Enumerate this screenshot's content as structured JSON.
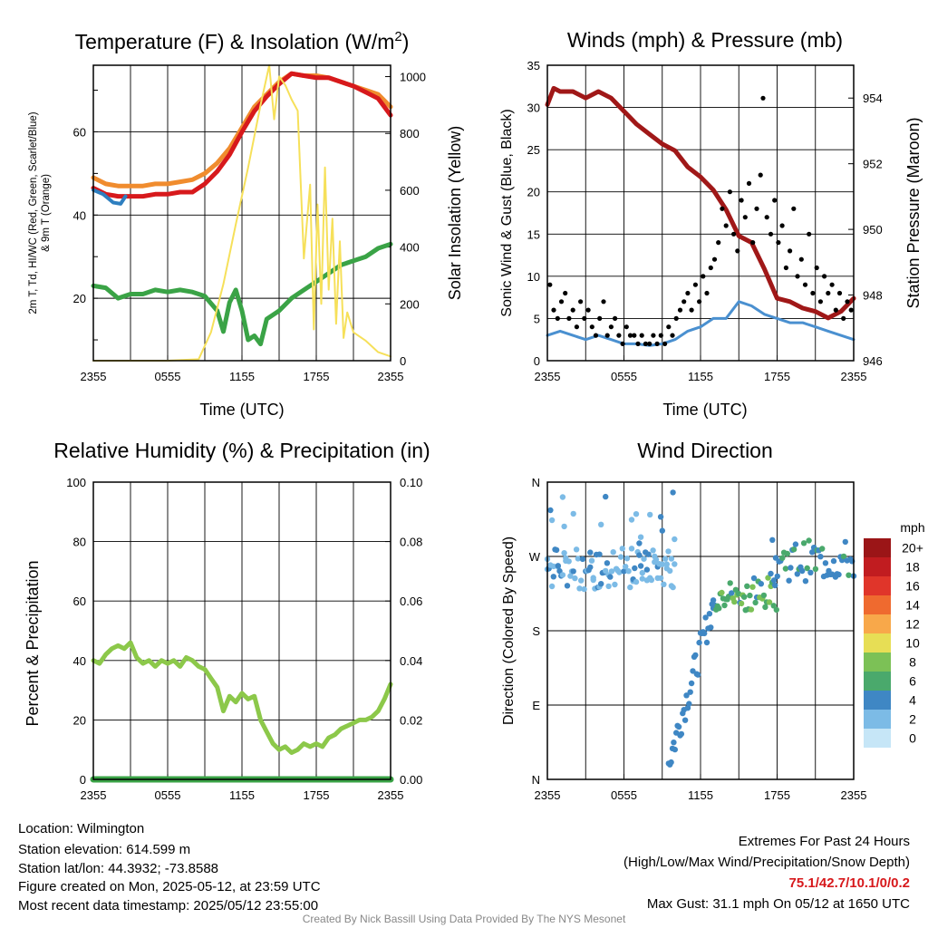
{
  "colors": {
    "temp": "#d7191c",
    "dewpoint": "#3aa346",
    "heat_index": "#2e7fc0",
    "temp9m": "#f08c2e",
    "insolation": "#f6e05a",
    "wind": "#4a90d0",
    "gust": "#000000",
    "pressure": "#a01818",
    "rh": "#8cc84a",
    "precip": "#3aa346"
  },
  "chart_data": [
    {
      "id": "temperature",
      "type": "line",
      "title_text": "Temperature (F) & Insolation (W/m",
      "title_sup": "2",
      "title_close": ")",
      "xlabel": "Time (UTC)",
      "ylabel_line1": "2m T, Td, HI/WC (Red, Green, Scarlet/Blue)",
      "ylabel_line2": "& 9m T (Orange)",
      "ylabel_right": "Solar Insolation (Yellow)",
      "x_ticks": [
        "2355",
        "0555",
        "1155",
        "1755",
        "2355"
      ],
      "y_ticks": [
        "20",
        "40",
        "60"
      ],
      "y_right_ticks": [
        "0",
        "200",
        "400",
        "600",
        "800",
        "1000"
      ],
      "ylim": [
        5,
        76
      ],
      "ylim_right": [
        0,
        1040
      ],
      "xlim": [
        0,
        24
      ],
      "series": [
        {
          "key": "temp9m",
          "axis": "left",
          "x": [
            0,
            1,
            2,
            3,
            4,
            5,
            6,
            7,
            8,
            9,
            10,
            11,
            12,
            13,
            14,
            15,
            16,
            17,
            18,
            19,
            20,
            21,
            22,
            23,
            24
          ],
          "y": [
            49,
            47.5,
            47,
            47,
            47,
            47.5,
            47.5,
            48,
            48.5,
            50,
            52.5,
            56,
            61,
            66,
            69,
            72,
            74,
            73.5,
            73.5,
            73,
            72,
            71,
            70,
            69,
            66
          ]
        },
        {
          "key": "temp",
          "axis": "left",
          "x": [
            0,
            1,
            2,
            3,
            4,
            5,
            6,
            7,
            8,
            9,
            10,
            11,
            12,
            13,
            14,
            15,
            16,
            17,
            18,
            19,
            20,
            21,
            22,
            23,
            24
          ],
          "y": [
            46.5,
            45,
            44.5,
            44.5,
            44.5,
            45,
            45,
            45.5,
            45.5,
            47.5,
            50.5,
            54.5,
            60,
            65,
            68.5,
            71.5,
            74,
            73.5,
            73,
            73,
            72,
            71,
            69.5,
            68,
            64
          ]
        },
        {
          "key": "heat_index",
          "axis": "left",
          "x": [
            0,
            0.4,
            0.8,
            1.2,
            1.6,
            2.2,
            2.6
          ],
          "y": [
            46,
            45.5,
            45,
            44,
            43,
            42.7,
            44.5
          ]
        },
        {
          "key": "dewpoint",
          "axis": "left",
          "x": [
            0,
            1,
            2,
            3,
            4,
            5,
            6,
            7,
            8,
            9,
            10,
            10.5,
            11,
            11.5,
            12,
            12.5,
            13,
            13.5,
            14,
            15,
            16,
            17,
            18,
            19,
            20,
            21,
            22,
            23,
            24
          ],
          "y": [
            23,
            22.5,
            20,
            21,
            21,
            22,
            21.5,
            22,
            21.5,
            20.5,
            17,
            12,
            19,
            22,
            17,
            10,
            11,
            9,
            15,
            17,
            20,
            22,
            24,
            26,
            28,
            29,
            30,
            32,
            33
          ]
        },
        {
          "key": "insolation",
          "axis": "right",
          "x": [
            0,
            6,
            8.5,
            9.5,
            10.5,
            11.5,
            12.5,
            13.5,
            14.2,
            14.6,
            15,
            15.5,
            16,
            16.5,
            17,
            17.5,
            17.8,
            18.1,
            18.4,
            18.7,
            19,
            19.3,
            19.6,
            19.9,
            20.2,
            20.5,
            21,
            22,
            23,
            24
          ],
          "y": [
            0,
            0,
            5,
            100,
            270,
            480,
            680,
            900,
            1040,
            850,
            1000,
            970,
            920,
            880,
            360,
            620,
            110,
            550,
            200,
            680,
            250,
            500,
            130,
            420,
            80,
            170,
            100,
            70,
            30,
            15
          ]
        }
      ]
    },
    {
      "id": "winds",
      "type": "line",
      "title": "Winds (mph) & Pressure (mb)",
      "xlabel": "Time (UTC)",
      "ylabel": "Sonic Wind & Gust (Blue, Black)",
      "ylabel_right": "Station Pressure (Maroon)",
      "x_ticks": [
        "2355",
        "0555",
        "1155",
        "1755",
        "2355"
      ],
      "y_ticks": [
        "0",
        "5",
        "10",
        "15",
        "20",
        "25",
        "30",
        "35"
      ],
      "y_right_ticks": [
        "946",
        "948",
        "950",
        "952",
        "954"
      ],
      "ylim": [
        0,
        35
      ],
      "ylim_right": [
        946,
        955
      ],
      "xlim": [
        0,
        24
      ],
      "series": [
        {
          "key": "wind",
          "x": [
            0,
            1,
            2,
            3,
            4,
            5,
            6,
            7,
            8,
            9,
            10,
            11,
            12,
            13,
            14,
            15,
            16,
            17,
            18,
            19,
            20,
            21,
            22,
            23,
            24
          ],
          "y": [
            3,
            3.5,
            3,
            2.5,
            3,
            2.5,
            2,
            2,
            1.8,
            2,
            2.5,
            3.5,
            4,
            5,
            5,
            7,
            6.5,
            5.5,
            5,
            4.5,
            4.5,
            4,
            3.5,
            3,
            2.5
          ]
        },
        {
          "key": "pressure",
          "x": [
            0,
            0.5,
            1,
            2,
            3,
            4,
            5,
            6,
            7,
            8,
            9,
            10,
            11,
            12,
            13,
            14,
            15,
            16,
            17,
            18,
            19,
            20,
            21,
            22,
            23,
            24
          ],
          "y": [
            953.8,
            954.3,
            954.2,
            954.2,
            954.0,
            954.2,
            954.0,
            953.6,
            953.2,
            952.9,
            952.6,
            952.4,
            951.9,
            951.6,
            951.2,
            950.6,
            949.8,
            949.6,
            948.8,
            947.9,
            947.8,
            947.6,
            947.5,
            947.3,
            947.5,
            947.9
          ]
        },
        {
          "key": "gust",
          "type": "scatter",
          "x": [
            0.2,
            0.5,
            0.8,
            1.1,
            1.4,
            1.7,
            2,
            2.3,
            2.6,
            2.9,
            3.2,
            3.5,
            3.8,
            4.1,
            4.4,
            4.7,
            5,
            5.3,
            5.6,
            5.9,
            6.2,
            6.5,
            6.8,
            7.1,
            7.4,
            7.7,
            8,
            8.3,
            8.6,
            8.9,
            9.2,
            9.5,
            9.8,
            10.1,
            10.4,
            10.7,
            11,
            11.3,
            11.6,
            11.9,
            12.2,
            12.5,
            12.8,
            13.1,
            13.4,
            13.7,
            14,
            14.3,
            14.6,
            14.9,
            15.2,
            15.5,
            15.8,
            16.1,
            16.4,
            16.7,
            16.9,
            17.2,
            17.5,
            17.8,
            18.1,
            18.4,
            18.7,
            19,
            19.3,
            19.6,
            19.9,
            20.2,
            20.5,
            20.8,
            21.1,
            21.4,
            21.7,
            22,
            22.3,
            22.6,
            22.9,
            23.2,
            23.5,
            23.8
          ],
          "y": [
            9,
            6,
            5,
            7,
            8,
            5,
            6,
            4,
            7,
            5,
            6,
            4,
            3,
            5,
            7,
            3,
            4,
            5,
            3,
            2,
            4,
            3,
            3,
            2,
            3,
            2,
            2,
            3,
            2,
            3,
            2,
            4,
            3,
            5,
            6,
            7,
            8,
            6,
            9,
            7,
            10,
            8,
            11,
            12,
            14,
            18,
            16,
            20,
            15,
            13,
            19,
            17,
            21,
            14,
            18,
            22,
            31.1,
            17,
            15,
            19,
            14,
            16,
            11,
            13,
            18,
            10,
            12,
            9,
            15,
            8,
            11,
            7,
            10,
            8,
            9,
            6,
            8,
            5,
            7,
            6
          ]
        }
      ]
    },
    {
      "id": "humidity",
      "type": "line",
      "title": "Relative Humidity (%) & Precipitation (in)",
      "ylabel": "Percent & Precipitation",
      "x_ticks": [
        "2355",
        "0555",
        "1155",
        "1755",
        "2355"
      ],
      "y_ticks": [
        "0",
        "20",
        "40",
        "60",
        "80",
        "100"
      ],
      "y_right_ticks": [
        "0.00",
        "0.02",
        "0.04",
        "0.06",
        "0.08",
        "0.10"
      ],
      "ylim": [
        0,
        100
      ],
      "ylim_right": [
        0,
        0.1
      ],
      "xlim": [
        0,
        24
      ],
      "series": [
        {
          "key": "rh",
          "x": [
            0,
            0.5,
            1,
            1.5,
            2,
            2.5,
            3,
            3.5,
            4,
            4.5,
            5,
            5.5,
            6,
            6.5,
            7,
            7.5,
            8,
            8.5,
            9,
            9.5,
            10,
            10.5,
            11,
            11.5,
            12,
            12.5,
            13,
            13.5,
            14,
            14.5,
            15,
            15.5,
            16,
            16.5,
            17,
            17.5,
            18,
            18.5,
            19,
            19.5,
            20,
            20.5,
            21,
            21.5,
            22,
            22.5,
            23,
            23.5,
            24
          ],
          "y": [
            40,
            39,
            42,
            44,
            45,
            44,
            46,
            41,
            39,
            40,
            38,
            40,
            39,
            40,
            38,
            41,
            40,
            38,
            37,
            34,
            31,
            23,
            28,
            26,
            29,
            27,
            28,
            20,
            16,
            12,
            10,
            11,
            9,
            10,
            12,
            11,
            12,
            11,
            14,
            15,
            17,
            18,
            19,
            20,
            20,
            21,
            23,
            27,
            32
          ]
        },
        {
          "key": "precip",
          "x": [
            0,
            24
          ],
          "y": [
            0,
            0
          ]
        }
      ]
    },
    {
      "id": "direction",
      "type": "scatter",
      "title": "Wind Direction",
      "ylabel": "Direction (Colored By Speed)",
      "x_ticks": [
        "2355",
        "0555",
        "1155",
        "1755",
        "2355"
      ],
      "y_ticks": [
        "N",
        "E",
        "S",
        "W",
        "N"
      ],
      "ylim": [
        0,
        360
      ],
      "xlim": [
        0,
        24
      ],
      "legend_title": "mph",
      "legend_labels": [
        "0",
        "2",
        "4",
        "6",
        "8",
        "10",
        "12",
        "14",
        "16",
        "18",
        "20+"
      ],
      "legend_colors": [
        "#c6e6f7",
        "#7cbbe6",
        "#3f87c4",
        "#4aa96c",
        "#7cc156",
        "#e7de55",
        "#f8a84a",
        "#ef6a2f",
        "#e0352a",
        "#c11c20",
        "#9b1517"
      ]
    }
  ],
  "info": {
    "location": "Location: Wilmington",
    "elevation": "Station elevation: 614.599 m",
    "latlon": "Station lat/lon: 44.3932; -73.8588",
    "created": "Figure created on Mon, 2025-05-12, at 23:59 UTC",
    "recent": "Most recent data timestamp: 2025/05/12 23:55:00"
  },
  "extremes": {
    "title": "Extremes For Past 24 Hours",
    "legend": "(High/Low/Max Wind/Precipitation/Snow Depth)",
    "values": "75.1/42.7/10.1/0/0.2",
    "max_gust": "Max Gust: 31.1 mph On 05/12 at 1650 UTC"
  },
  "credit": "Created By Nick Bassill Using Data Provided By The NYS Mesonet"
}
